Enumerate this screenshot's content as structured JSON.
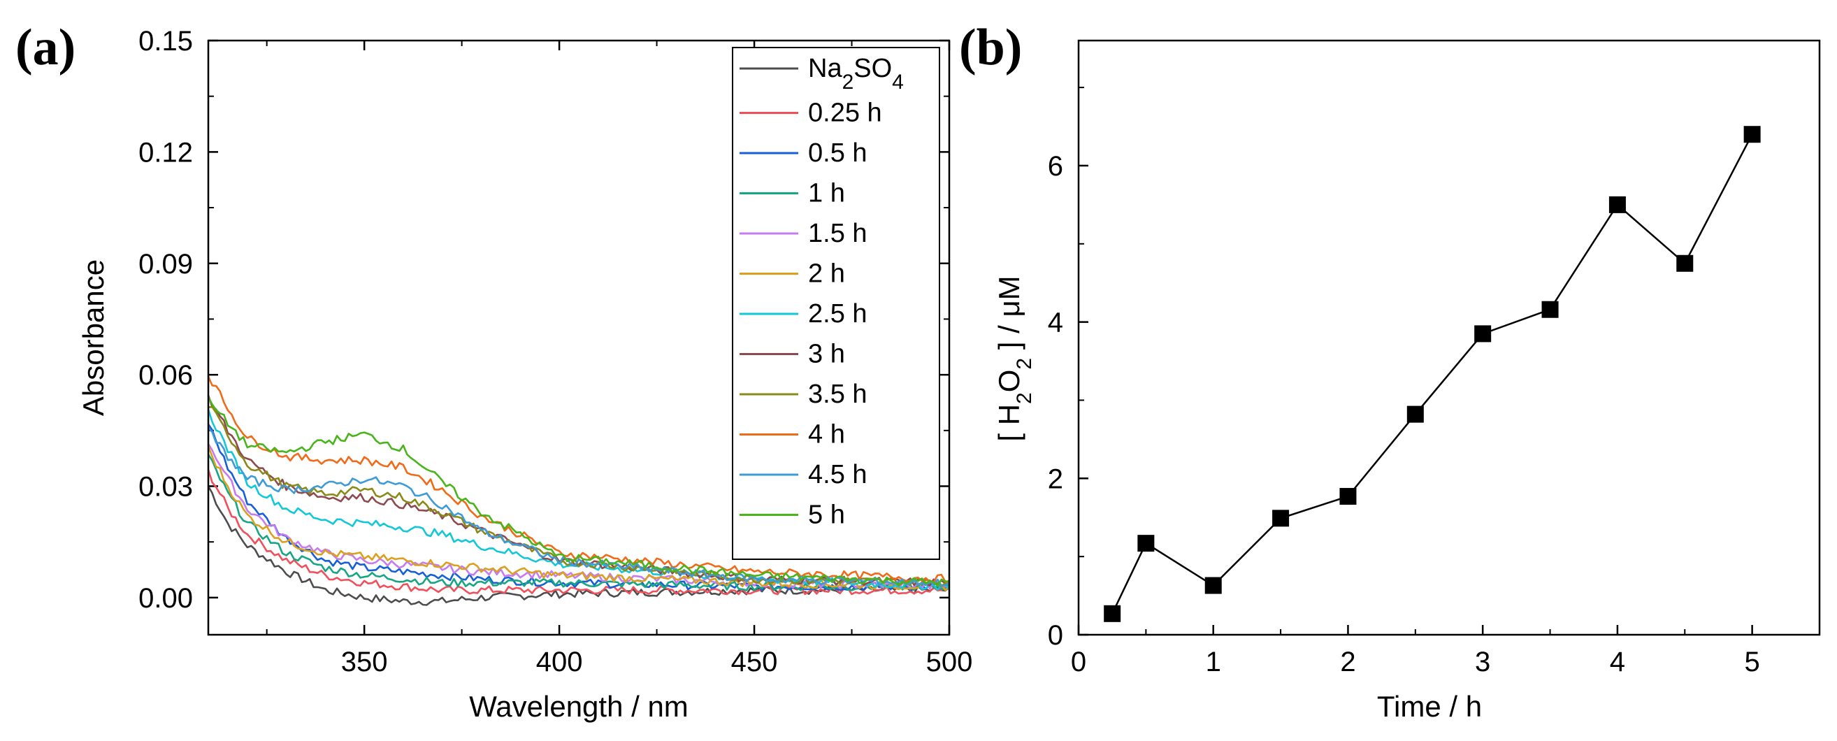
{
  "chart_data": [
    {
      "panel": "(a)",
      "type": "line",
      "xlabel": "Wavelength / nm",
      "ylabel": "Absorbance",
      "xlim": [
        310,
        500
      ],
      "ylim": [
        -0.01,
        0.15
      ],
      "xticks": [
        "350",
        "400",
        "450",
        "500"
      ],
      "xtick_values": [
        350,
        400,
        450,
        500
      ],
      "yticks": [
        "0.00",
        "0.03",
        "0.06",
        "0.09",
        "0.12",
        "0.15"
      ],
      "ytick_values": [
        0,
        0.03,
        0.06,
        0.09,
        0.12,
        0.15
      ],
      "legend_position": "top-right",
      "series": [
        {
          "name": "Na2SO4",
          "legend_main": "Na",
          "legend_sub1": "2",
          "legend_mid": "SO",
          "legend_sub2": "4",
          "color": "#4d4d4d",
          "x": [
            310,
            315,
            320,
            330,
            340,
            350,
            360,
            370,
            380,
            400,
            450,
            500
          ],
          "y": [
            0.03,
            0.02,
            0.014,
            0.007,
            0.002,
            0.0,
            -0.001,
            -0.001,
            0.0,
            0.001,
            0.002,
            0.002
          ]
        },
        {
          "name": "0.25 h",
          "color": "#f0505a",
          "x": [
            310,
            315,
            320,
            330,
            340,
            350,
            360,
            370,
            380,
            400,
            450,
            500
          ],
          "y": [
            0.034,
            0.024,
            0.017,
            0.01,
            0.006,
            0.004,
            0.003,
            0.002,
            0.002,
            0.002,
            0.002,
            0.002
          ]
        },
        {
          "name": "0.5 h",
          "color": "#1560d8",
          "x": [
            310,
            315,
            320,
            330,
            340,
            350,
            360,
            370,
            380,
            400,
            450,
            500
          ],
          "y": [
            0.047,
            0.035,
            0.026,
            0.016,
            0.01,
            0.008,
            0.007,
            0.006,
            0.005,
            0.004,
            0.003,
            0.003
          ]
        },
        {
          "name": "1 h",
          "color": "#17a683",
          "x": [
            310,
            315,
            320,
            330,
            340,
            350,
            360,
            370,
            380,
            400,
            450,
            500
          ],
          "y": [
            0.038,
            0.028,
            0.02,
            0.012,
            0.008,
            0.006,
            0.005,
            0.004,
            0.004,
            0.004,
            0.003,
            0.003
          ]
        },
        {
          "name": "1.5 h",
          "color": "#c67bf0",
          "x": [
            310,
            315,
            320,
            330,
            340,
            350,
            360,
            370,
            380,
            400,
            450,
            500
          ],
          "y": [
            0.042,
            0.032,
            0.024,
            0.016,
            0.012,
            0.01,
            0.009,
            0.008,
            0.007,
            0.006,
            0.004,
            0.003
          ]
        },
        {
          "name": "2 h",
          "color": "#dca020",
          "x": [
            310,
            315,
            320,
            330,
            340,
            350,
            360,
            370,
            380,
            400,
            450,
            500
          ],
          "y": [
            0.04,
            0.03,
            0.022,
            0.015,
            0.012,
            0.011,
            0.01,
            0.009,
            0.008,
            0.006,
            0.004,
            0.003
          ]
        },
        {
          "name": "2.5 h",
          "color": "#12c8d8",
          "x": [
            310,
            315,
            320,
            330,
            340,
            350,
            360,
            370,
            380,
            400,
            450,
            500
          ],
          "y": [
            0.05,
            0.04,
            0.031,
            0.024,
            0.021,
            0.02,
            0.019,
            0.017,
            0.014,
            0.009,
            0.005,
            0.003
          ]
        },
        {
          "name": "3 h",
          "color": "#8e4a50",
          "x": [
            310,
            315,
            320,
            330,
            340,
            350,
            360,
            370,
            380,
            400,
            450,
            500
          ],
          "y": [
            0.054,
            0.045,
            0.037,
            0.03,
            0.027,
            0.027,
            0.025,
            0.022,
            0.018,
            0.01,
            0.005,
            0.004
          ]
        },
        {
          "name": "3.5 h",
          "color": "#8a8a18",
          "x": [
            310,
            315,
            320,
            330,
            340,
            350,
            360,
            370,
            380,
            400,
            450,
            500
          ],
          "y": [
            0.052,
            0.044,
            0.036,
            0.03,
            0.028,
            0.029,
            0.027,
            0.023,
            0.018,
            0.01,
            0.005,
            0.004
          ]
        },
        {
          "name": "4 h",
          "color": "#f06a18",
          "x": [
            310,
            315,
            320,
            330,
            340,
            350,
            360,
            370,
            380,
            400,
            450,
            500
          ],
          "y": [
            0.06,
            0.051,
            0.043,
            0.038,
            0.037,
            0.037,
            0.035,
            0.029,
            0.022,
            0.012,
            0.007,
            0.005
          ]
        },
        {
          "name": "4.5 h",
          "color": "#3d9bd8",
          "x": [
            310,
            315,
            320,
            330,
            340,
            350,
            360,
            370,
            380,
            400,
            450,
            500
          ],
          "y": [
            0.045,
            0.038,
            0.032,
            0.029,
            0.03,
            0.032,
            0.03,
            0.025,
            0.018,
            0.01,
            0.005,
            0.004
          ]
        },
        {
          "name": "5 h",
          "color": "#48b51a",
          "x": [
            310,
            315,
            320,
            330,
            340,
            350,
            360,
            370,
            380,
            400,
            450,
            500
          ],
          "y": [
            0.053,
            0.047,
            0.041,
            0.039,
            0.042,
            0.044,
            0.04,
            0.031,
            0.023,
            0.011,
            0.006,
            0.004
          ]
        }
      ]
    },
    {
      "panel": "(b)",
      "type": "line",
      "marker": "square",
      "xlabel": "Time / h",
      "ylabel": "[ H2O2 ] / μM",
      "ylabel_parts": {
        "open": "[ H",
        "sub1": "2",
        "mid": "O",
        "sub2": "2",
        "close": " ] / μM"
      },
      "xlim": [
        0,
        5.5
      ],
      "ylim": [
        0,
        7.6
      ],
      "xticks": [
        "0",
        "1",
        "2",
        "3",
        "4",
        "5"
      ],
      "xtick_values": [
        0,
        1,
        2,
        3,
        4,
        5
      ],
      "yticks": [
        "0",
        "2",
        "4",
        "6"
      ],
      "ytick_values": [
        0,
        2,
        4,
        6
      ],
      "color": "#000000",
      "series": [
        {
          "name": "H2O2",
          "x": [
            0.25,
            0.5,
            1,
            1.5,
            2,
            2.5,
            3,
            3.5,
            4,
            4.5,
            5
          ],
          "y": [
            0.27,
            1.17,
            0.63,
            1.49,
            1.77,
            2.82,
            3.85,
            4.16,
            5.5,
            4.75,
            6.4
          ]
        }
      ]
    }
  ]
}
